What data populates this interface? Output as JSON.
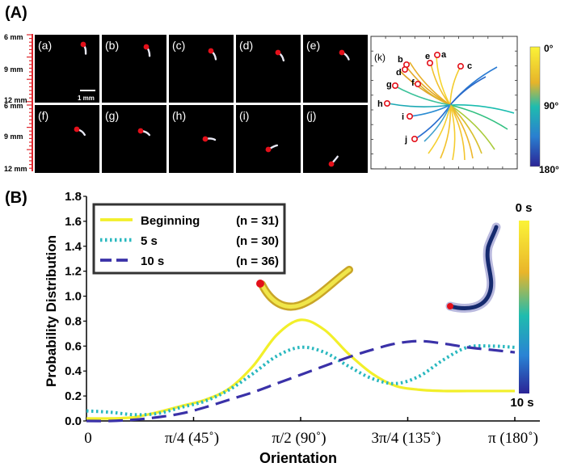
{
  "panel_a": {
    "label": "(A)",
    "scale_ticks": [
      "6 mm",
      "9 mm",
      "12 mm"
    ],
    "scale_ticks_row2": [
      "6 mm",
      "9 mm",
      "12 mm"
    ],
    "scale_bar_label": "1 mm",
    "frames": [
      {
        "label": "(a)",
        "angle_deg": 15
      },
      {
        "label": "(b)",
        "angle_deg": 20
      },
      {
        "label": "(c)",
        "angle_deg": 30
      },
      {
        "label": "(d)",
        "angle_deg": 35
      },
      {
        "label": "(e)",
        "angle_deg": 45
      },
      {
        "label": "(f)",
        "angle_deg": 55
      },
      {
        "label": "(g)",
        "angle_deg": 65
      },
      {
        "label": "(h)",
        "angle_deg": 85
      },
      {
        "label": "(i)",
        "angle_deg": 115
      },
      {
        "label": "(j)",
        "angle_deg": 140
      }
    ],
    "inset": {
      "label": "(k)",
      "point_labels": [
        "a",
        "b",
        "c",
        "d",
        "e",
        "f",
        "g",
        "h",
        "i",
        "j"
      ]
    },
    "colorbar": {
      "top_label": "0°",
      "mid_label": "90°",
      "bottom_label": "180°",
      "top_color": "#f9f53a",
      "mid_color": "#1ec0b0",
      "bottom_color": "#2c2a9a"
    }
  },
  "panel_b": {
    "label": "(B)",
    "colorbar": {
      "top_label": "0 s",
      "bottom_label": "10 s"
    },
    "legend": [
      {
        "name": "Beginning",
        "n": "(n = 31)",
        "color": "#f2ef2a",
        "style": "solid"
      },
      {
        "name": "5 s",
        "n": "(n = 30)",
        "color": "#2ab8bf",
        "style": "dotted"
      },
      {
        "name": "10 s",
        "n": "(n = 36)",
        "color": "#3a31a8",
        "style": "dashed"
      }
    ]
  },
  "chart_data": {
    "type": "line",
    "title": "",
    "xlabel": "Orientation",
    "ylabel": "Probability Distribution",
    "xlim": [
      0,
      180
    ],
    "ylim": [
      0,
      1.8
    ],
    "x_ticks": [
      0,
      45,
      90,
      135,
      180
    ],
    "x_tick_labels": [
      "0",
      "π/4 (45˚)",
      "π/2 (90˚)",
      "3π/4 (135˚)",
      "π (180˚)"
    ],
    "y_ticks": [
      0,
      0.2,
      0.4,
      0.6,
      0.8,
      1.0,
      1.2,
      1.4,
      1.6,
      1.8
    ],
    "y_tick_labels": [
      "0.0",
      "0.2",
      "0.4",
      "0.6",
      "0.8",
      "1.0",
      "1.2",
      "1.4",
      "1.6",
      "1.8"
    ],
    "series": [
      {
        "name": "Beginning (n = 31)",
        "x": [
          0,
          10,
          20,
          30,
          40,
          50,
          60,
          70,
          80,
          90,
          100,
          110,
          120,
          130,
          140,
          150,
          160,
          170,
          180
        ],
        "values": [
          0.02,
          0.02,
          0.03,
          0.07,
          0.12,
          0.17,
          0.26,
          0.44,
          0.69,
          0.81,
          0.73,
          0.54,
          0.38,
          0.28,
          0.25,
          0.24,
          0.24,
          0.24,
          0.24
        ]
      },
      {
        "name": "5 s (n = 30)",
        "x": [
          0,
          10,
          20,
          30,
          40,
          50,
          60,
          70,
          80,
          90,
          100,
          110,
          120,
          130,
          140,
          150,
          160,
          170,
          180
        ],
        "values": [
          0.08,
          0.07,
          0.05,
          0.06,
          0.11,
          0.16,
          0.25,
          0.38,
          0.52,
          0.59,
          0.55,
          0.44,
          0.34,
          0.3,
          0.36,
          0.49,
          0.59,
          0.6,
          0.59
        ]
      },
      {
        "name": "10 s (n = 36)",
        "x": [
          0,
          10,
          20,
          30,
          40,
          50,
          60,
          70,
          80,
          90,
          100,
          110,
          120,
          130,
          140,
          150,
          160,
          170,
          180
        ],
        "values": [
          0.0,
          0.0,
          0.01,
          0.03,
          0.06,
          0.11,
          0.17,
          0.23,
          0.3,
          0.37,
          0.44,
          0.51,
          0.57,
          0.62,
          0.64,
          0.62,
          0.59,
          0.57,
          0.55
        ]
      }
    ],
    "legend_position": "top-left",
    "grid": false
  }
}
